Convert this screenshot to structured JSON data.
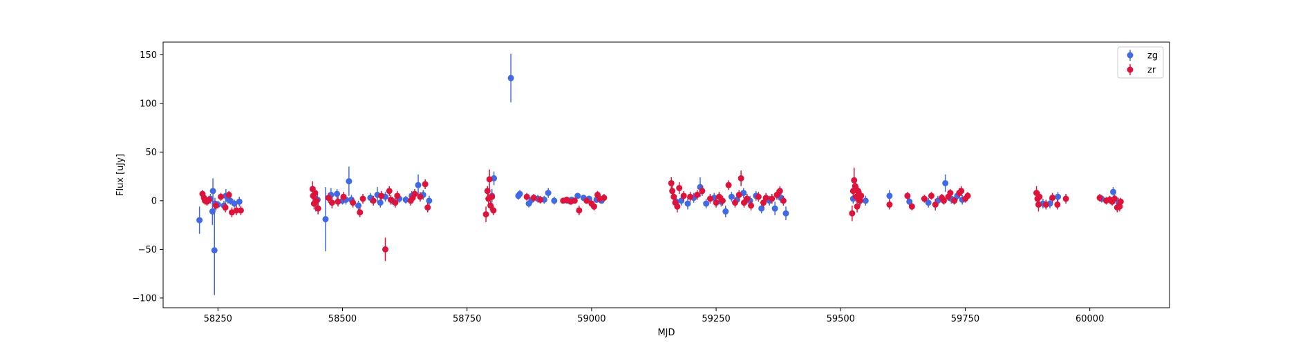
{
  "chart_data": {
    "type": "scatter",
    "title": "",
    "xlabel": "MJD",
    "ylabel": "Flux [uJy]",
    "xlim": [
      58140,
      60160
    ],
    "ylim": [
      -110,
      163
    ],
    "xticks": [
      58250,
      58500,
      58750,
      59000,
      59250,
      59500,
      59750,
      60000
    ],
    "yticks": [
      -100,
      -50,
      0,
      50,
      100,
      150
    ],
    "grid": false,
    "legend_position": "top-right",
    "series": [
      {
        "name": "zg",
        "color": "#4169e1",
        "points": [
          [
            58213,
            -20,
            14
          ],
          [
            58235,
            2,
            5
          ],
          [
            58239,
            -11,
            14
          ],
          [
            58240,
            10,
            13
          ],
          [
            58243,
            -51,
            46
          ],
          [
            58244,
            -3,
            6
          ],
          [
            58250,
            -4,
            4
          ],
          [
            58262,
            -5,
            5
          ],
          [
            58266,
            5,
            7
          ],
          [
            58270,
            2,
            5
          ],
          [
            58275,
            0,
            4
          ],
          [
            58283,
            -3,
            4
          ],
          [
            58293,
            -1,
            5
          ],
          [
            58446,
            -1,
            10
          ],
          [
            58450,
            1,
            6
          ],
          [
            58466,
            -19,
            33
          ],
          [
            58477,
            6,
            7
          ],
          [
            58489,
            7,
            5
          ],
          [
            58500,
            0,
            4
          ],
          [
            58507,
            1,
            5
          ],
          [
            58513,
            20,
            15
          ],
          [
            58518,
            1,
            5
          ],
          [
            58532,
            -5,
            5
          ],
          [
            58556,
            3,
            5
          ],
          [
            58570,
            6,
            8
          ],
          [
            58576,
            -2,
            5
          ],
          [
            58586,
            4,
            5
          ],
          [
            58600,
            0,
            4
          ],
          [
            58614,
            2,
            4
          ],
          [
            58627,
            1,
            4
          ],
          [
            58639,
            5,
            5
          ],
          [
            58652,
            16,
            11
          ],
          [
            58662,
            6,
            5
          ],
          [
            58674,
            0,
            5
          ],
          [
            58800,
            5,
            7
          ],
          [
            58804,
            23,
            7
          ],
          [
            58853,
            5,
            4
          ],
          [
            58856,
            7,
            4
          ],
          [
            58874,
            -3,
            4
          ],
          [
            58880,
            1,
            4
          ],
          [
            58892,
            2,
            4
          ],
          [
            58905,
            1,
            4
          ],
          [
            58913,
            8,
            5
          ],
          [
            58925,
            0,
            4
          ],
          [
            58951,
            0,
            3
          ],
          [
            58960,
            1,
            3
          ],
          [
            58972,
            5,
            3
          ],
          [
            58984,
            3,
            3
          ],
          [
            58995,
            2,
            3
          ],
          [
            59010,
            1,
            3
          ],
          [
            59020,
            0,
            3
          ],
          [
            58838,
            126,
            25
          ],
          [
            59170,
            -1,
            6
          ],
          [
            59180,
            0,
            5
          ],
          [
            59193,
            -3,
            6
          ],
          [
            59205,
            3,
            5
          ],
          [
            59218,
            14,
            10
          ],
          [
            59230,
            -3,
            5
          ],
          [
            59246,
            3,
            5
          ],
          [
            59260,
            -1,
            5
          ],
          [
            59269,
            -11,
            6
          ],
          [
            59281,
            4,
            5
          ],
          [
            59292,
            1,
            5
          ],
          [
            59305,
            8,
            5
          ],
          [
            59318,
            0,
            5
          ],
          [
            59330,
            5,
            5
          ],
          [
            59341,
            -8,
            5
          ],
          [
            59357,
            0,
            5
          ],
          [
            59368,
            -8,
            7
          ],
          [
            59380,
            3,
            5
          ],
          [
            59390,
            -13,
            7
          ],
          [
            59525,
            2,
            5
          ],
          [
            59537,
            1,
            5
          ],
          [
            59550,
            0,
            5
          ],
          [
            59598,
            5,
            6
          ],
          [
            59638,
            -1,
            5
          ],
          [
            59676,
            -2,
            5
          ],
          [
            59695,
            0,
            5
          ],
          [
            59710,
            18,
            9
          ],
          [
            59722,
            2,
            5
          ],
          [
            59734,
            5,
            5
          ],
          [
            59744,
            1,
            5
          ],
          [
            59906,
            -3,
            5
          ],
          [
            59920,
            -3,
            5
          ],
          [
            59936,
            4,
            5
          ],
          [
            60024,
            2,
            4
          ],
          [
            60040,
            1,
            4
          ],
          [
            60047,
            9,
            5
          ],
          [
            60058,
            -2,
            5
          ]
        ]
      },
      {
        "name": "zr",
        "color": "#dc143c",
        "points": [
          [
            58219,
            7,
            4
          ],
          [
            58222,
            3,
            4
          ],
          [
            58224,
            0,
            4
          ],
          [
            58228,
            -1,
            4
          ],
          [
            58232,
            1,
            4
          ],
          [
            58246,
            -5,
            5
          ],
          [
            58256,
            4,
            4
          ],
          [
            58265,
            -7,
            5
          ],
          [
            58272,
            6,
            4
          ],
          [
            58278,
            -12,
            5
          ],
          [
            58287,
            -10,
            5
          ],
          [
            58296,
            -10,
            5
          ],
          [
            58440,
            12,
            8
          ],
          [
            58441,
            5,
            7
          ],
          [
            58443,
            -3,
            6
          ],
          [
            58445,
            8,
            6
          ],
          [
            58448,
            0,
            5
          ],
          [
            58451,
            -8,
            6
          ],
          [
            58472,
            3,
            5
          ],
          [
            58479,
            -2,
            6
          ],
          [
            58491,
            -1,
            5
          ],
          [
            58502,
            4,
            5
          ],
          [
            58521,
            -2,
            5
          ],
          [
            58535,
            -12,
            5
          ],
          [
            58541,
            2,
            5
          ],
          [
            58562,
            0,
            5
          ],
          [
            58578,
            5,
            5
          ],
          [
            58586,
            -50,
            12
          ],
          [
            58594,
            10,
            5
          ],
          [
            58597,
            1,
            5
          ],
          [
            58606,
            -2,
            5
          ],
          [
            58610,
            5,
            5
          ],
          [
            58637,
            0,
            5
          ],
          [
            58641,
            3,
            5
          ],
          [
            58645,
            7,
            5
          ],
          [
            58656,
            4,
            5
          ],
          [
            58666,
            17,
            5
          ],
          [
            58671,
            -7,
            5
          ],
          [
            58788,
            -14,
            8
          ],
          [
            58791,
            10,
            5
          ],
          [
            58793,
            2,
            5
          ],
          [
            58795,
            22,
            10
          ],
          [
            58797,
            -5,
            5
          ],
          [
            58800,
            4,
            5
          ],
          [
            58803,
            -10,
            5
          ],
          [
            58870,
            4,
            4
          ],
          [
            58884,
            3,
            4
          ],
          [
            58897,
            1,
            4
          ],
          [
            58943,
            0,
            3
          ],
          [
            58950,
            1,
            3
          ],
          [
            58958,
            -1,
            3
          ],
          [
            58966,
            0,
            3
          ],
          [
            58975,
            -10,
            5
          ],
          [
            58990,
            0,
            3
          ],
          [
            59000,
            -3,
            4
          ],
          [
            59005,
            -6,
            4
          ],
          [
            59012,
            6,
            4
          ],
          [
            59016,
            2,
            4
          ],
          [
            59025,
            3,
            4
          ],
          [
            59160,
            18,
            6
          ],
          [
            59162,
            10,
            5
          ],
          [
            59165,
            4,
            5
          ],
          [
            59168,
            -2,
            6
          ],
          [
            59172,
            -6,
            6
          ],
          [
            59176,
            13,
            6
          ],
          [
            59185,
            5,
            5
          ],
          [
            59198,
            4,
            5
          ],
          [
            59212,
            6,
            5
          ],
          [
            59222,
            10,
            5
          ],
          [
            59238,
            2,
            5
          ],
          [
            59250,
            -2,
            5
          ],
          [
            59256,
            4,
            5
          ],
          [
            59263,
            0,
            5
          ],
          [
            59275,
            16,
            5
          ],
          [
            59288,
            -2,
            5
          ],
          [
            59296,
            6,
            5
          ],
          [
            59300,
            23,
            8
          ],
          [
            59306,
            -2,
            5
          ],
          [
            59312,
            2,
            5
          ],
          [
            59320,
            -5,
            5
          ],
          [
            59335,
            4,
            5
          ],
          [
            59345,
            -2,
            5
          ],
          [
            59350,
            3,
            5
          ],
          [
            59362,
            2,
            5
          ],
          [
            59372,
            6,
            5
          ],
          [
            59378,
            10,
            5
          ],
          [
            59385,
            0,
            5
          ],
          [
            59523,
            -13,
            8
          ],
          [
            59525,
            10,
            6
          ],
          [
            59527,
            21,
            13
          ],
          [
            59529,
            15,
            6
          ],
          [
            59531,
            4,
            5
          ],
          [
            59533,
            -6,
            6
          ],
          [
            59535,
            10,
            5
          ],
          [
            59539,
            0,
            5
          ],
          [
            59541,
            5,
            5
          ],
          [
            59598,
            -4,
            5
          ],
          [
            59634,
            5,
            4
          ],
          [
            59643,
            -6,
            4
          ],
          [
            59668,
            2,
            4
          ],
          [
            59682,
            5,
            4
          ],
          [
            59690,
            -4,
            6
          ],
          [
            59703,
            3,
            4
          ],
          [
            59707,
            0,
            4
          ],
          [
            59716,
            4,
            4
          ],
          [
            59720,
            8,
            4
          ],
          [
            59728,
            0,
            4
          ],
          [
            59738,
            8,
            5
          ],
          [
            59742,
            10,
            5
          ],
          [
            59750,
            2,
            4
          ],
          [
            59755,
            5,
            4
          ],
          [
            59893,
            8,
            7
          ],
          [
            59895,
            2,
            6
          ],
          [
            59897,
            -4,
            7
          ],
          [
            59899,
            4,
            5
          ],
          [
            59912,
            -4,
            5
          ],
          [
            59925,
            3,
            5
          ],
          [
            59935,
            -4,
            5
          ],
          [
            59952,
            2,
            5
          ],
          [
            60020,
            3,
            4
          ],
          [
            60033,
            0,
            4
          ],
          [
            60040,
            1,
            4
          ],
          [
            60045,
            -1,
            4
          ],
          [
            60050,
            2,
            4
          ],
          [
            60055,
            -7,
            5
          ],
          [
            60060,
            -6,
            5
          ],
          [
            60062,
            -1,
            4
          ]
        ]
      }
    ]
  }
}
